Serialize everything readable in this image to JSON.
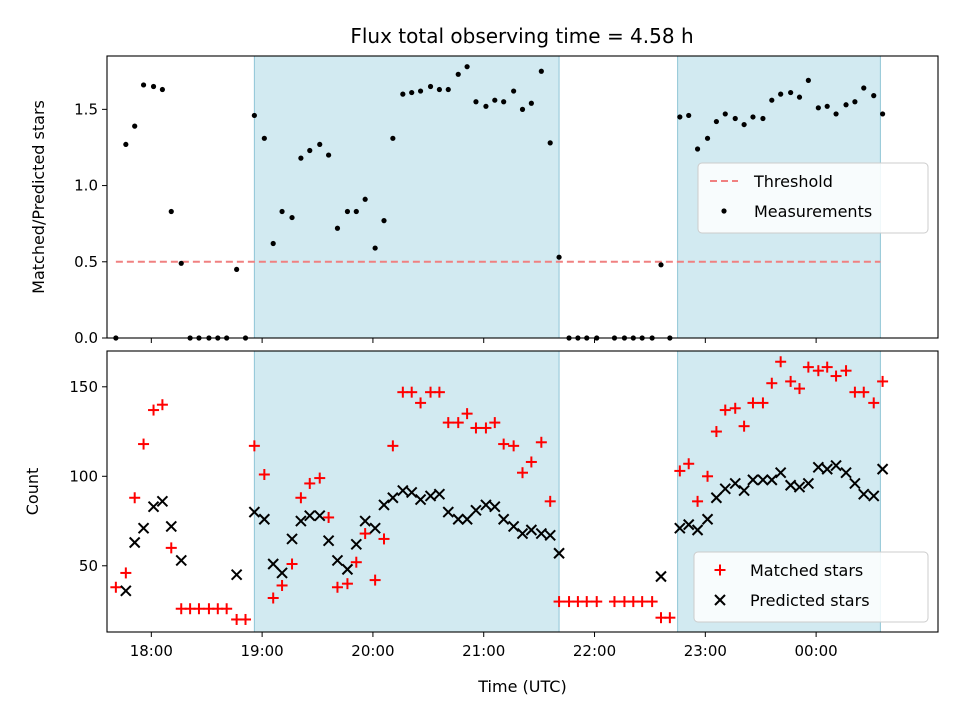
{
  "chart_data": [
    {
      "type": "scatter",
      "title": "Flux total observing time = 4.58 h",
      "xlabel": "",
      "ylabel": "Matched/Predicted stars",
      "xlim": [
        17.6,
        25.1
      ],
      "ylim": [
        0,
        1.85
      ],
      "x_tick_values": [
        18,
        19,
        20,
        21,
        22,
        23,
        24
      ],
      "x_tick_labels": [
        "",
        "",
        "",
        "",
        "",
        "",
        ""
      ],
      "yticks": [
        {
          "value": 0.0,
          "label": "0.0"
        },
        {
          "value": 0.5,
          "label": "0.5"
        },
        {
          "value": 1.0,
          "label": "1.0"
        },
        {
          "value": 1.5,
          "label": "1.5"
        }
      ],
      "shaded_regions": [
        [
          18.93,
          21.68
        ],
        [
          22.75,
          24.58
        ]
      ],
      "shade_color": "#add8e6",
      "threshold": {
        "name": "Threshold",
        "y": 0.5,
        "x_range": [
          17.68,
          24.58
        ],
        "color": "#f08080",
        "dash": "dashed"
      },
      "legend_position": "center-right",
      "legend": [
        {
          "label": "Threshold",
          "marker": "dash",
          "color": "#f08080"
        },
        {
          "label": "Measurements",
          "marker": "dot",
          "color": "#000000"
        }
      ],
      "series": [
        {
          "name": "Measurements",
          "marker": "dot",
          "color": "#000000",
          "points": [
            [
              17.68,
              0.0
            ],
            [
              17.77,
              1.27
            ],
            [
              17.85,
              1.39
            ],
            [
              17.93,
              1.66
            ],
            [
              18.02,
              1.65
            ],
            [
              18.1,
              1.63
            ],
            [
              18.18,
              0.83
            ],
            [
              18.27,
              0.49
            ],
            [
              18.35,
              0.0
            ],
            [
              18.43,
              0.0
            ],
            [
              18.52,
              0.0
            ],
            [
              18.6,
              0.0
            ],
            [
              18.68,
              0.0
            ],
            [
              18.77,
              0.45
            ],
            [
              18.85,
              0.0
            ],
            [
              18.93,
              1.46
            ],
            [
              19.02,
              1.31
            ],
            [
              19.1,
              0.62
            ],
            [
              19.18,
              0.83
            ],
            [
              19.27,
              0.79
            ],
            [
              19.35,
              1.18
            ],
            [
              19.43,
              1.23
            ],
            [
              19.52,
              1.27
            ],
            [
              19.6,
              1.2
            ],
            [
              19.68,
              0.72
            ],
            [
              19.77,
              0.83
            ],
            [
              19.85,
              0.83
            ],
            [
              19.93,
              0.91
            ],
            [
              20.02,
              0.59
            ],
            [
              20.1,
              0.77
            ],
            [
              20.18,
              1.31
            ],
            [
              20.27,
              1.6
            ],
            [
              20.35,
              1.61
            ],
            [
              20.43,
              1.62
            ],
            [
              20.52,
              1.65
            ],
            [
              20.6,
              1.63
            ],
            [
              20.68,
              1.63
            ],
            [
              20.77,
              1.73
            ],
            [
              20.85,
              1.78
            ],
            [
              20.93,
              1.55
            ],
            [
              21.02,
              1.52
            ],
            [
              21.1,
              1.56
            ],
            [
              21.18,
              1.55
            ],
            [
              21.27,
              1.62
            ],
            [
              21.35,
              1.5
            ],
            [
              21.43,
              1.54
            ],
            [
              21.52,
              1.75
            ],
            [
              21.6,
              1.28
            ],
            [
              21.68,
              0.53
            ],
            [
              21.77,
              0.0
            ],
            [
              21.85,
              0.0
            ],
            [
              21.93,
              0.0
            ],
            [
              22.02,
              0.0
            ],
            [
              22.18,
              0.0
            ],
            [
              22.27,
              0.0
            ],
            [
              22.35,
              0.0
            ],
            [
              22.43,
              0.0
            ],
            [
              22.52,
              0.0
            ],
            [
              22.6,
              0.48
            ],
            [
              22.68,
              0.0
            ],
            [
              22.77,
              1.45
            ],
            [
              22.85,
              1.46
            ],
            [
              22.93,
              1.24
            ],
            [
              23.02,
              1.31
            ],
            [
              23.1,
              1.42
            ],
            [
              23.18,
              1.47
            ],
            [
              23.27,
              1.44
            ],
            [
              23.35,
              1.4
            ],
            [
              23.43,
              1.45
            ],
            [
              23.52,
              1.44
            ],
            [
              23.6,
              1.56
            ],
            [
              23.68,
              1.6
            ],
            [
              23.77,
              1.61
            ],
            [
              23.85,
              1.58
            ],
            [
              23.93,
              1.69
            ],
            [
              24.02,
              1.51
            ],
            [
              24.1,
              1.52
            ],
            [
              24.18,
              1.47
            ],
            [
              24.27,
              1.53
            ],
            [
              24.35,
              1.55
            ],
            [
              24.43,
              1.64
            ],
            [
              24.52,
              1.59
            ],
            [
              24.6,
              1.47
            ]
          ]
        }
      ]
    },
    {
      "type": "scatter",
      "title": "",
      "xlabel": "Time (UTC)",
      "ylabel": "Count",
      "xlim": [
        17.6,
        25.1
      ],
      "ylim": [
        13,
        170
      ],
      "x_tick_values": [
        18,
        19,
        20,
        21,
        22,
        23,
        24
      ],
      "x_tick_labels": [
        "18:00",
        "19:00",
        "20:00",
        "21:00",
        "22:00",
        "23:00",
        "00:00"
      ],
      "yticks": [
        {
          "value": 50,
          "label": "50"
        },
        {
          "value": 100,
          "label": "100"
        },
        {
          "value": 150,
          "label": "150"
        }
      ],
      "shaded_regions": [
        [
          18.93,
          21.68
        ],
        [
          22.75,
          24.58
        ]
      ],
      "shade_color": "#add8e6",
      "legend_position": "lower-right",
      "legend": [
        {
          "label": "Matched stars",
          "marker": "plus",
          "color": "#ff0000"
        },
        {
          "label": "Predicted stars",
          "marker": "x",
          "color": "#000000"
        }
      ],
      "series": [
        {
          "name": "Matched stars",
          "marker": "plus",
          "color": "#ff0000",
          "points": [
            [
              17.68,
              38
            ],
            [
              17.77,
              46
            ],
            [
              17.85,
              88
            ],
            [
              17.93,
              118
            ],
            [
              18.02,
              137
            ],
            [
              18.1,
              140
            ],
            [
              18.18,
              60
            ],
            [
              18.27,
              26
            ],
            [
              18.35,
              26
            ],
            [
              18.43,
              26
            ],
            [
              18.52,
              26
            ],
            [
              18.6,
              26
            ],
            [
              18.68,
              26
            ],
            [
              18.77,
              20
            ],
            [
              18.85,
              20
            ],
            [
              18.93,
              117
            ],
            [
              19.02,
              101
            ],
            [
              19.1,
              32
            ],
            [
              19.18,
              39
            ],
            [
              19.27,
              51
            ],
            [
              19.35,
              88
            ],
            [
              19.43,
              96
            ],
            [
              19.52,
              99
            ],
            [
              19.6,
              77
            ],
            [
              19.68,
              38
            ],
            [
              19.77,
              40
            ],
            [
              19.85,
              52
            ],
            [
              19.93,
              68
            ],
            [
              20.02,
              42
            ],
            [
              20.1,
              65
            ],
            [
              20.18,
              117
            ],
            [
              20.27,
              147
            ],
            [
              20.35,
              147
            ],
            [
              20.43,
              141
            ],
            [
              20.52,
              147
            ],
            [
              20.6,
              147
            ],
            [
              20.68,
              130
            ],
            [
              20.77,
              130
            ],
            [
              20.85,
              135
            ],
            [
              20.93,
              127
            ],
            [
              21.02,
              127
            ],
            [
              21.1,
              130
            ],
            [
              21.18,
              118
            ],
            [
              21.27,
              117
            ],
            [
              21.35,
              102
            ],
            [
              21.43,
              108
            ],
            [
              21.52,
              119
            ],
            [
              21.6,
              86
            ],
            [
              21.68,
              30
            ],
            [
              21.77,
              30
            ],
            [
              21.85,
              30
            ],
            [
              21.93,
              30
            ],
            [
              22.02,
              30
            ],
            [
              22.18,
              30
            ],
            [
              22.27,
              30
            ],
            [
              22.35,
              30
            ],
            [
              22.43,
              30
            ],
            [
              22.52,
              30
            ],
            [
              22.6,
              21
            ],
            [
              22.68,
              21
            ],
            [
              22.77,
              103
            ],
            [
              22.85,
              107
            ],
            [
              22.93,
              86
            ],
            [
              23.02,
              100
            ],
            [
              23.1,
              125
            ],
            [
              23.18,
              137
            ],
            [
              23.27,
              138
            ],
            [
              23.35,
              128
            ],
            [
              23.43,
              141
            ],
            [
              23.52,
              141
            ],
            [
              23.6,
              152
            ],
            [
              23.68,
              164
            ],
            [
              23.77,
              153
            ],
            [
              23.85,
              149
            ],
            [
              23.93,
              161
            ],
            [
              24.02,
              159
            ],
            [
              24.1,
              161
            ],
            [
              24.18,
              156
            ],
            [
              24.27,
              159
            ],
            [
              24.35,
              147
            ],
            [
              24.43,
              147
            ],
            [
              24.52,
              141
            ],
            [
              24.6,
              153
            ]
          ]
        },
        {
          "name": "Predicted stars",
          "marker": "x",
          "color": "#000000",
          "points": [
            [
              17.77,
              36
            ],
            [
              17.85,
              63
            ],
            [
              17.93,
              71
            ],
            [
              18.02,
              83
            ],
            [
              18.1,
              86
            ],
            [
              18.18,
              72
            ],
            [
              18.27,
              53
            ],
            [
              18.77,
              45
            ],
            [
              18.93,
              80
            ],
            [
              19.02,
              76
            ],
            [
              19.1,
              51
            ],
            [
              19.18,
              46
            ],
            [
              19.27,
              65
            ],
            [
              19.35,
              75
            ],
            [
              19.43,
              78
            ],
            [
              19.52,
              78
            ],
            [
              19.6,
              64
            ],
            [
              19.68,
              53
            ],
            [
              19.77,
              48
            ],
            [
              19.85,
              62
            ],
            [
              19.93,
              75
            ],
            [
              20.02,
              71
            ],
            [
              20.1,
              84
            ],
            [
              20.18,
              88
            ],
            [
              20.27,
              92
            ],
            [
              20.35,
              91
            ],
            [
              20.43,
              87
            ],
            [
              20.52,
              89
            ],
            [
              20.6,
              90
            ],
            [
              20.68,
              80
            ],
            [
              20.77,
              76
            ],
            [
              20.85,
              76
            ],
            [
              20.93,
              81
            ],
            [
              21.02,
              84
            ],
            [
              21.1,
              83
            ],
            [
              21.18,
              76
            ],
            [
              21.27,
              72
            ],
            [
              21.35,
              68
            ],
            [
              21.43,
              70
            ],
            [
              21.52,
              68
            ],
            [
              21.6,
              67
            ],
            [
              21.68,
              57
            ],
            [
              22.6,
              44
            ],
            [
              22.77,
              71
            ],
            [
              22.85,
              73
            ],
            [
              22.93,
              70
            ],
            [
              23.02,
              76
            ],
            [
              23.1,
              88
            ],
            [
              23.18,
              93
            ],
            [
              23.27,
              96
            ],
            [
              23.35,
              92
            ],
            [
              23.43,
              98
            ],
            [
              23.52,
              98
            ],
            [
              23.6,
              98
            ],
            [
              23.68,
              102
            ],
            [
              23.77,
              95
            ],
            [
              23.85,
              94
            ],
            [
              23.93,
              96
            ],
            [
              24.02,
              105
            ],
            [
              24.1,
              104
            ],
            [
              24.18,
              106
            ],
            [
              24.27,
              102
            ],
            [
              24.35,
              96
            ],
            [
              24.43,
              90
            ],
            [
              24.52,
              89
            ],
            [
              24.6,
              104
            ]
          ]
        }
      ]
    }
  ]
}
